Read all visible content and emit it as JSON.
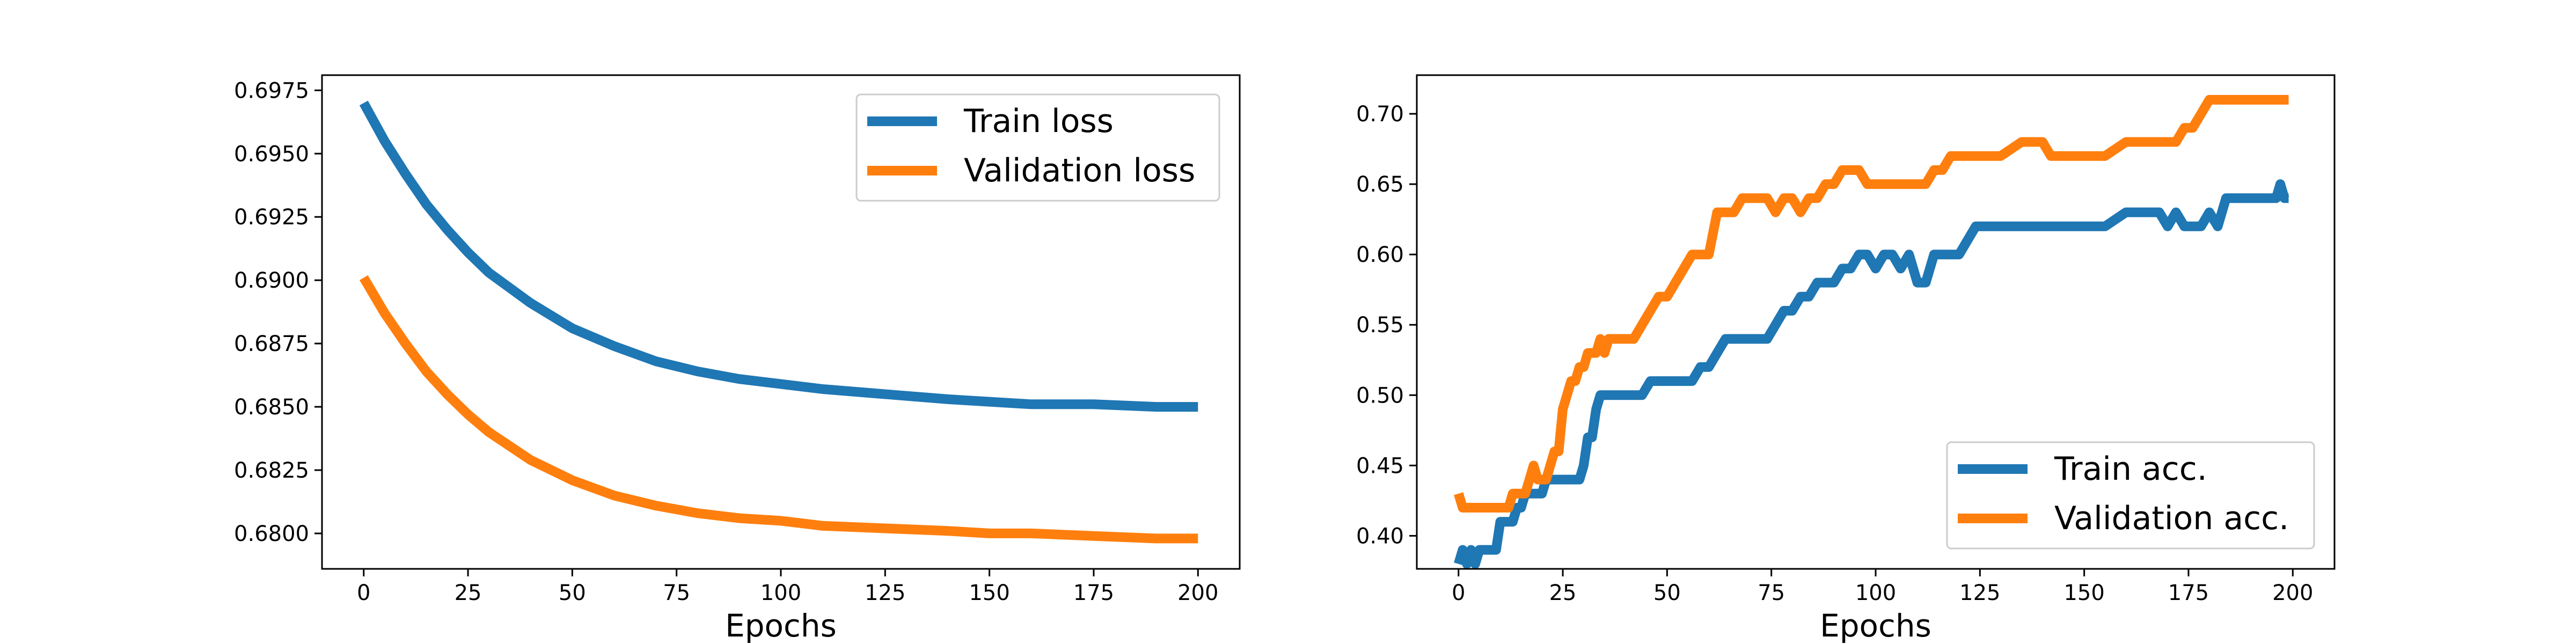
{
  "chart_data": [
    {
      "type": "line",
      "xlabel": "Epochs",
      "ylabel": "",
      "title": "",
      "xlim": [
        -10,
        210
      ],
      "ylim": [
        0.6786,
        0.6981
      ],
      "xticks": [
        0,
        25,
        50,
        75,
        100,
        125,
        150,
        175,
        200
      ],
      "yticks": [
        0.68,
        0.6825,
        0.685,
        0.6875,
        0.69,
        0.6925,
        0.695,
        0.6975
      ],
      "ytick_labels": [
        "0.6800",
        "0.6825",
        "0.6850",
        "0.6875",
        "0.6900",
        "0.6925",
        "0.6950",
        "0.6975"
      ],
      "legend": "upper right",
      "grid": false,
      "series": [
        {
          "name": "Train loss",
          "color": "#1f77b4",
          "x": [
            0,
            5,
            10,
            15,
            20,
            25,
            30,
            40,
            50,
            60,
            70,
            80,
            90,
            100,
            110,
            125,
            140,
            150,
            160,
            175,
            190,
            200
          ],
          "y": [
            0.697,
            0.6955,
            0.6942,
            0.693,
            0.692,
            0.6911,
            0.6903,
            0.6891,
            0.6881,
            0.6874,
            0.6868,
            0.6864,
            0.6861,
            0.6859,
            0.6857,
            0.6855,
            0.6853,
            0.6852,
            0.6851,
            0.6851,
            0.685,
            0.685
          ]
        },
        {
          "name": "Validation loss",
          "color": "#ff7f0e",
          "x": [
            0,
            5,
            10,
            15,
            20,
            25,
            30,
            40,
            50,
            60,
            70,
            80,
            90,
            100,
            110,
            125,
            140,
            150,
            160,
            175,
            190,
            200
          ],
          "y": [
            0.6901,
            0.6887,
            0.6875,
            0.6864,
            0.6855,
            0.6847,
            0.684,
            0.6829,
            0.6821,
            0.6815,
            0.6811,
            0.6808,
            0.6806,
            0.6805,
            0.6803,
            0.6802,
            0.6801,
            0.68,
            0.68,
            0.6799,
            0.6798,
            0.6798
          ]
        }
      ]
    },
    {
      "type": "line",
      "xlabel": "Epochs",
      "ylabel": "",
      "title": "",
      "xlim": [
        -10,
        210
      ],
      "ylim": [
        0.3765,
        0.7275
      ],
      "xticks": [
        0,
        25,
        50,
        75,
        100,
        125,
        150,
        175,
        200
      ],
      "yticks": [
        0.4,
        0.45,
        0.5,
        0.55,
        0.6,
        0.65,
        0.7
      ],
      "ytick_labels": [
        "0.40",
        "0.45",
        "0.50",
        "0.55",
        "0.60",
        "0.65",
        "0.70"
      ],
      "legend": "lower right",
      "grid": false,
      "series": [
        {
          "name": "Train acc.",
          "color": "#1f77b4",
          "x": [
            0,
            1,
            2,
            3,
            4,
            5,
            6,
            7,
            8,
            9,
            10,
            11,
            12,
            13,
            14,
            15,
            16,
            17,
            18,
            19,
            20,
            21,
            22,
            23,
            24,
            25,
            26,
            27,
            28,
            29,
            30,
            31,
            32,
            33,
            34,
            35,
            36,
            38,
            40,
            42,
            44,
            46,
            48,
            50,
            52,
            54,
            56,
            58,
            60,
            62,
            64,
            66,
            68,
            70,
            72,
            74,
            76,
            78,
            80,
            82,
            84,
            86,
            88,
            90,
            92,
            94,
            96,
            98,
            100,
            102,
            104,
            106,
            108,
            110,
            112,
            114,
            116,
            118,
            120,
            122,
            124,
            126,
            128,
            130,
            135,
            140,
            145,
            150,
            155,
            160,
            165,
            168,
            170,
            172,
            174,
            176,
            178,
            180,
            182,
            184,
            186,
            188,
            190,
            192,
            194,
            196,
            197,
            198,
            199
          ],
          "y": [
            0.38,
            0.39,
            0.38,
            0.39,
            0.38,
            0.39,
            0.39,
            0.39,
            0.39,
            0.39,
            0.41,
            0.41,
            0.41,
            0.41,
            0.42,
            0.42,
            0.43,
            0.43,
            0.43,
            0.43,
            0.43,
            0.44,
            0.44,
            0.44,
            0.44,
            0.44,
            0.44,
            0.44,
            0.44,
            0.44,
            0.45,
            0.47,
            0.47,
            0.49,
            0.5,
            0.5,
            0.5,
            0.5,
            0.5,
            0.5,
            0.5,
            0.51,
            0.51,
            0.51,
            0.51,
            0.51,
            0.51,
            0.52,
            0.52,
            0.53,
            0.54,
            0.54,
            0.54,
            0.54,
            0.54,
            0.54,
            0.55,
            0.56,
            0.56,
            0.57,
            0.57,
            0.58,
            0.58,
            0.58,
            0.59,
            0.59,
            0.6,
            0.6,
            0.59,
            0.6,
            0.6,
            0.59,
            0.6,
            0.58,
            0.58,
            0.6,
            0.6,
            0.6,
            0.6,
            0.61,
            0.62,
            0.62,
            0.62,
            0.62,
            0.62,
            0.62,
            0.62,
            0.62,
            0.62,
            0.63,
            0.63,
            0.63,
            0.62,
            0.63,
            0.62,
            0.62,
            0.62,
            0.63,
            0.62,
            0.64,
            0.64,
            0.64,
            0.64,
            0.64,
            0.64,
            0.64,
            0.65,
            0.64,
            0.64
          ]
        },
        {
          "name": "Validation acc.",
          "color": "#ff7f0e",
          "x": [
            0,
            1,
            2,
            3,
            4,
            5,
            6,
            7,
            8,
            9,
            10,
            11,
            12,
            13,
            14,
            15,
            16,
            17,
            18,
            19,
            20,
            21,
            22,
            23,
            24,
            25,
            26,
            27,
            28,
            29,
            30,
            31,
            32,
            33,
            34,
            35,
            36,
            38,
            40,
            42,
            44,
            46,
            48,
            50,
            52,
            54,
            56,
            58,
            60,
            62,
            64,
            66,
            68,
            70,
            72,
            74,
            76,
            78,
            80,
            82,
            84,
            86,
            88,
            90,
            92,
            94,
            96,
            98,
            100,
            102,
            104,
            106,
            108,
            110,
            112,
            114,
            116,
            118,
            120,
            122,
            124,
            126,
            128,
            130,
            135,
            140,
            142,
            145,
            150,
            155,
            160,
            165,
            170,
            172,
            174,
            176,
            178,
            180,
            185,
            190,
            195,
            199
          ],
          "y": [
            0.43,
            0.42,
            0.42,
            0.42,
            0.42,
            0.42,
            0.42,
            0.42,
            0.42,
            0.42,
            0.42,
            0.42,
            0.42,
            0.43,
            0.43,
            0.43,
            0.43,
            0.44,
            0.45,
            0.44,
            0.44,
            0.44,
            0.45,
            0.46,
            0.46,
            0.49,
            0.5,
            0.51,
            0.51,
            0.52,
            0.52,
            0.53,
            0.53,
            0.53,
            0.54,
            0.53,
            0.54,
            0.54,
            0.54,
            0.54,
            0.55,
            0.56,
            0.57,
            0.57,
            0.58,
            0.59,
            0.6,
            0.6,
            0.6,
            0.63,
            0.63,
            0.63,
            0.64,
            0.64,
            0.64,
            0.64,
            0.63,
            0.64,
            0.64,
            0.63,
            0.64,
            0.64,
            0.65,
            0.65,
            0.66,
            0.66,
            0.66,
            0.65,
            0.65,
            0.65,
            0.65,
            0.65,
            0.65,
            0.65,
            0.65,
            0.66,
            0.66,
            0.67,
            0.67,
            0.67,
            0.67,
            0.67,
            0.67,
            0.67,
            0.68,
            0.68,
            0.67,
            0.67,
            0.67,
            0.67,
            0.68,
            0.68,
            0.68,
            0.68,
            0.69,
            0.69,
            0.7,
            0.71,
            0.71,
            0.71,
            0.71,
            0.71
          ]
        }
      ]
    }
  ]
}
